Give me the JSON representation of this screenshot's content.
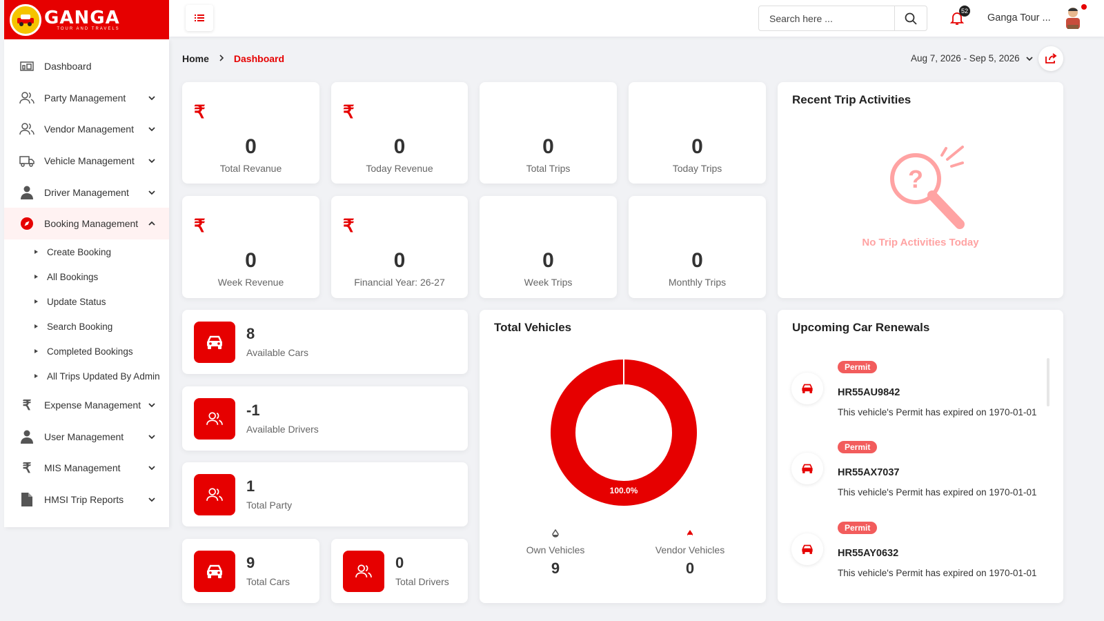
{
  "brand": {
    "name": "GANGA",
    "tagline": "TOUR AND TRAVELS"
  },
  "header": {
    "search_placeholder": "Search here ...",
    "notification_count": "52",
    "user_name": "Ganga Tour ..."
  },
  "sidebar": {
    "items": [
      {
        "label": "Dashboard",
        "icon": "dashboard-icon"
      },
      {
        "label": "Party Management",
        "icon": "users-icon"
      },
      {
        "label": "Vendor Management",
        "icon": "users-icon"
      },
      {
        "label": "Vehicle Management",
        "icon": "truck-icon"
      },
      {
        "label": "Driver Management",
        "icon": "user-icon"
      },
      {
        "label": "Booking Management",
        "icon": "compass-icon"
      },
      {
        "label": "Expense Management",
        "icon": "rupee-icon"
      },
      {
        "label": "User Management",
        "icon": "user-icon"
      },
      {
        "label": "MIS Management",
        "icon": "rupee-icon"
      },
      {
        "label": "HMSI Trip Reports",
        "icon": "file-icon"
      }
    ],
    "sub_items": [
      "Create Booking",
      "All Bookings",
      "Update Status",
      "Search Booking",
      "Completed Bookings",
      "All Trips Updated By Admin"
    ]
  },
  "breadcrumb": {
    "home": "Home",
    "current": "Dashboard"
  },
  "date_range": "Aug 7, 2026 - Sep 5, 2026",
  "stats": [
    {
      "value": "0",
      "label": "Total Revanue"
    },
    {
      "value": "0",
      "label": "Today Revenue"
    },
    {
      "value": "0",
      "label": "Total Trips"
    },
    {
      "value": "0",
      "label": "Today Trips"
    },
    {
      "value": "0",
      "label": "Week Revenue"
    },
    {
      "value": "0",
      "label": "Financial Year: 26-27"
    },
    {
      "value": "0",
      "label": "Week Trips"
    },
    {
      "value": "0",
      "label": "Monthly Trips"
    }
  ],
  "currency_symbol": "₹",
  "mini_stats": [
    {
      "value": "8",
      "label": "Available Cars"
    },
    {
      "value": "-1",
      "label": "Available Drivers"
    },
    {
      "value": "1",
      "label": "Total Party"
    },
    {
      "value": "9",
      "label": "Total Cars"
    },
    {
      "value": "0",
      "label": "Total Drivers"
    }
  ],
  "recent_trips": {
    "title": "Recent Trip Activities",
    "empty_message": "No Trip Activities Today"
  },
  "vehicles": {
    "title": "Total Vehicles",
    "donut_label": "100.0%",
    "own_label": "Own Vehicles",
    "own_value": "9",
    "vendor_label": "Vendor Vehicles",
    "vendor_value": "0"
  },
  "chart_data": {
    "type": "pie",
    "title": "Total Vehicles",
    "categories": [
      "Own Vehicles",
      "Vendor Vehicles"
    ],
    "values": [
      9,
      0
    ],
    "colors": [
      "#e60000",
      "#e60000"
    ]
  },
  "renewals": {
    "title": "Upcoming Car Renewals",
    "items": [
      {
        "badge": "Permit",
        "plate": "HR55AU9842",
        "message": "This vehicle's Permit has expired on 1970-01-01"
      },
      {
        "badge": "Permit",
        "plate": "HR55AX7037",
        "message": "This vehicle's Permit has expired on 1970-01-01"
      },
      {
        "badge": "Permit",
        "plate": "HR55AY0632",
        "message": "This vehicle's Permit has expired on 1970-01-01"
      }
    ]
  },
  "colors": {
    "accent": "#e60000",
    "badge": "#f25c5c",
    "empty_text": "#ffa3a3"
  }
}
